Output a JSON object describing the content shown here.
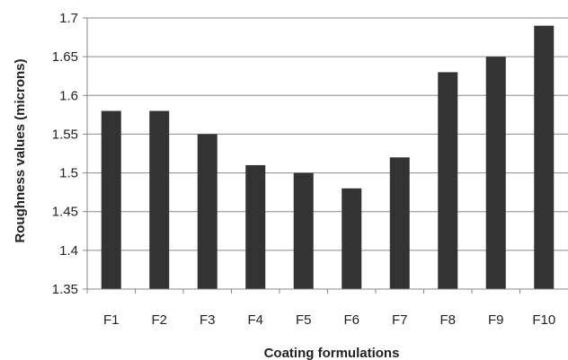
{
  "chart_data": {
    "type": "bar",
    "title": "",
    "xlabel": "Coating formulations",
    "ylabel": "Roughness values (microns)",
    "categories": [
      "F1",
      "F2",
      "F3",
      "F4",
      "F5",
      "F6",
      "F7",
      "F8",
      "F9",
      "F10"
    ],
    "values": [
      1.58,
      1.58,
      1.55,
      1.51,
      1.5,
      1.48,
      1.52,
      1.63,
      1.65,
      1.69
    ],
    "ylim": [
      1.35,
      1.7
    ],
    "yticks": [
      "1.35",
      "1.4",
      "1.45",
      "1.5",
      "1.55",
      "1.6",
      "1.65",
      "1.7"
    ],
    "grid": "horizontal",
    "legend": "none",
    "bar_color": "#333333"
  }
}
